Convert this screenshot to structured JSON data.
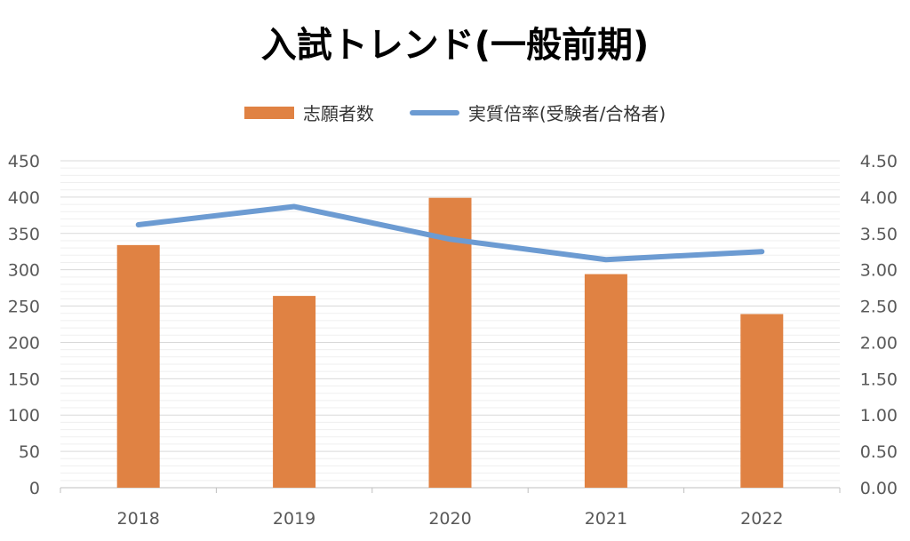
{
  "chart_data": {
    "type": "bar",
    "title": "入試トレンド(一般前期)",
    "categories": [
      "2018",
      "2019",
      "2020",
      "2021",
      "2022"
    ],
    "series": [
      {
        "name": "志願者数",
        "type": "bar",
        "axis": "left",
        "color": "#E08243",
        "values": [
          334,
          264,
          399,
          294,
          239
        ]
      },
      {
        "name": "実質倍率(受験者/合格者)",
        "type": "line",
        "axis": "right",
        "color": "#6C9BD2",
        "values": [
          3.62,
          3.87,
          3.42,
          3.14,
          3.25
        ]
      }
    ],
    "y_left": {
      "min": 0,
      "max": 450,
      "step": 50,
      "ticks": [
        "0",
        "50",
        "100",
        "150",
        "200",
        "250",
        "300",
        "350",
        "400",
        "450"
      ]
    },
    "y_right": {
      "min": 0,
      "max": 4.5,
      "step": 0.5,
      "ticks": [
        "0.00",
        "0.50",
        "1.00",
        "1.50",
        "2.00",
        "2.50",
        "3.00",
        "3.50",
        "4.00",
        "4.50"
      ]
    },
    "grid": true,
    "legend_position": "top"
  }
}
